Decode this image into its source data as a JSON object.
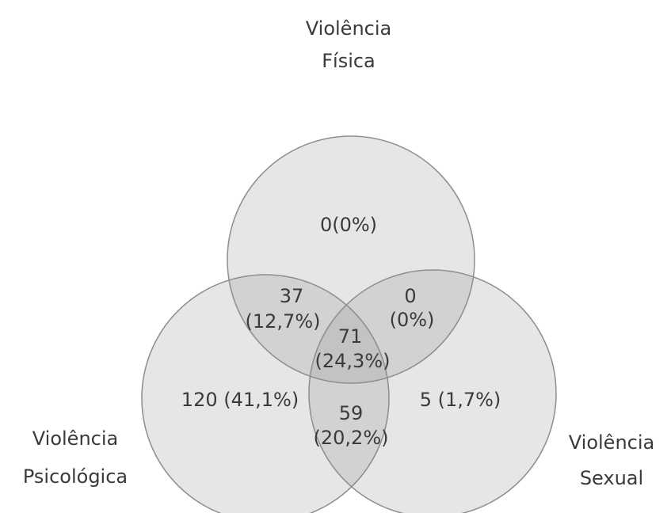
{
  "sets": [
    {
      "key": "fisica",
      "label_line1": "Violência",
      "label_line2": "Física"
    },
    {
      "key": "psicologica",
      "label_line1": "Violência",
      "label_line2": "Psicológica"
    },
    {
      "key": "sexual",
      "label_line1": "Violência",
      "label_line2": "Sexual"
    }
  ],
  "regions": {
    "fisica_only": {
      "line1": "0(0%)",
      "count": 0,
      "percent": 0
    },
    "fisica_psicologica": {
      "line1": "37",
      "line2": "(12,7%)",
      "count": 37,
      "percent": 12.7
    },
    "fisica_sexual": {
      "line1": "0",
      "line2": "(0%)",
      "count": 0,
      "percent": 0
    },
    "all_three": {
      "line1": "71",
      "line2": "(24,3%)",
      "count": 71,
      "percent": 24.3
    },
    "psicologica_only": {
      "line1": "120 (41,1%)",
      "count": 120,
      "percent": 41.1
    },
    "psicologica_sexual": {
      "line1": "59",
      "line2": "(20,2%)",
      "count": 59,
      "percent": 20.2
    },
    "sexual_only": {
      "line1": "5 (1,7%)",
      "count": 5,
      "percent": 1.7
    }
  },
  "colors": {
    "circle_fill": "#8c8c8c",
    "circle_stroke": "#8e8e8e",
    "text": "#3a3a3a"
  }
}
